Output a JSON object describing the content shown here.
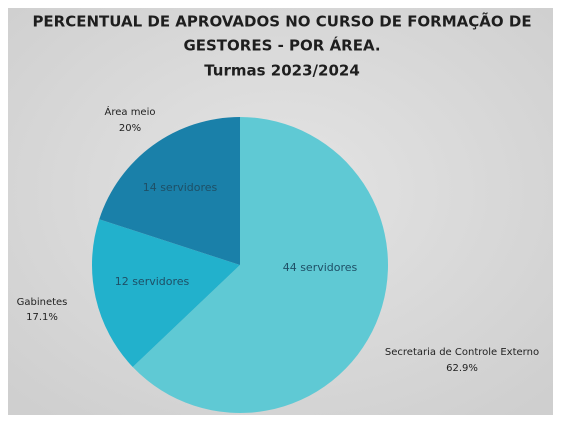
{
  "chart_data": {
    "type": "pie",
    "title": [
      "PERCENTUAL DE APROVADOS NO CURSO DE FORMAÇÃO DE",
      "GESTORES - POR ÁREA."
    ],
    "subtitle": "Turmas 2023/2024",
    "categories": [
      "Secretaria de Controle Externo",
      "Gabinetes",
      "Área meio"
    ],
    "values": [
      62.9,
      17.1,
      20
    ],
    "value_labels": [
      "62.9%",
      "17.1%",
      "20%"
    ],
    "annotations": [
      "44 servidores",
      "12 servidores",
      "14 servidores"
    ],
    "colors": [
      "#5fc9d4",
      "#22b1cc",
      "#1a80a9"
    ]
  }
}
